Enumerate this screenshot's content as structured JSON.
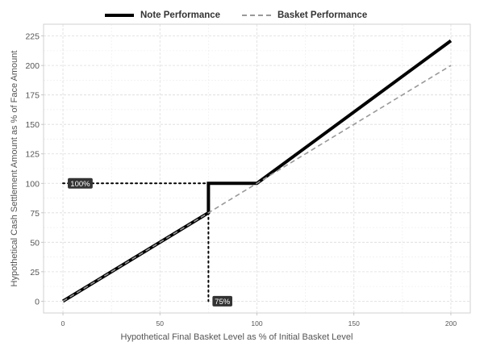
{
  "chart_data": {
    "type": "line",
    "xlabel": "Hypothetical Final Basket Level as % of Initial Basket Level",
    "ylabel": "Hypothetical Cash Settlement Amount as % of Face Amount",
    "xlim": [
      -10,
      210
    ],
    "ylim": [
      -10,
      235
    ],
    "xticks": [
      0,
      50,
      100,
      150,
      200
    ],
    "yticks": [
      0,
      25,
      50,
      75,
      100,
      125,
      150,
      175,
      200,
      225
    ],
    "grid": true,
    "legend_position": "top",
    "series": [
      {
        "name": "Note Performance",
        "style": "solid",
        "color": "#000000",
        "x": [
          0,
          75,
          75,
          100,
          200
        ],
        "y": [
          0,
          75,
          100,
          100,
          221
        ]
      },
      {
        "name": "Basket Performance",
        "style": "dashed",
        "color": "#999999",
        "x": [
          0,
          200
        ],
        "y": [
          0,
          200
        ]
      }
    ],
    "annotations": [
      {
        "text": "100%",
        "x": 0,
        "y": 100
      },
      {
        "text": "75%",
        "x": 75,
        "y": 0
      }
    ]
  },
  "legend": {
    "items": [
      "Note Performance",
      "Basket Performance"
    ]
  }
}
